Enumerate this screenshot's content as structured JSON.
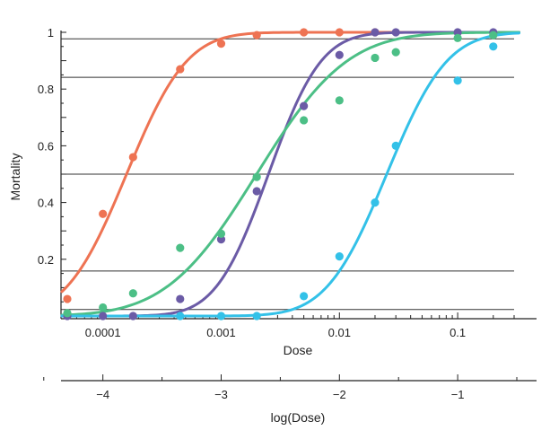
{
  "chart_data": {
    "type": "scatter",
    "xlabel": "Dose",
    "ylabel": "Mortality",
    "x_scale": "log",
    "xlim": [
      5e-05,
      0.3
    ],
    "ylim": [
      0,
      1
    ],
    "x_tick_labels": [
      "0.0001",
      "0.001",
      "0.01",
      "0.1"
    ],
    "x_ticks": [
      0.0001,
      0.001,
      0.01,
      0.1
    ],
    "y_tick_labels": [
      "0.2",
      "0.4",
      "0.6",
      "0.8",
      "1"
    ],
    "y_ticks": [
      0.2,
      0.4,
      0.6,
      0.8,
      1
    ],
    "reference_lines_y": [
      0.0228,
      0.1587,
      0.5,
      0.8413,
      0.9772
    ],
    "secondary_axis": {
      "label": "log(Dose)",
      "tick_labels": [
        "−4",
        "−3",
        "−2",
        "−1"
      ],
      "ticks": [
        -4,
        -3,
        -2,
        -1
      ],
      "minor_ticks": [
        -4.5,
        -3.5,
        -2.5,
        -1.5,
        -0.5
      ]
    },
    "grid": false,
    "series": [
      {
        "color": "#ee7353",
        "curve_log_center": -3.8,
        "curve_log_sigma": 0.4,
        "points": [
          {
            "x": 5e-05,
            "y": 0.06
          },
          {
            "x": 0.0001,
            "y": 0.36
          },
          {
            "x": 0.00018,
            "y": 0.56
          },
          {
            "x": 0.00045,
            "y": 0.87
          },
          {
            "x": 0.001,
            "y": 0.96
          },
          {
            "x": 0.002,
            "y": 0.99
          },
          {
            "x": 0.005,
            "y": 1.0
          },
          {
            "x": 0.01,
            "y": 1.0
          },
          {
            "x": 0.02,
            "y": 1.0
          }
        ]
      },
      {
        "color": "#6b5ba6",
        "curve_log_center": -2.6,
        "curve_log_sigma": 0.35,
        "points": [
          {
            "x": 5e-05,
            "y": 0.0
          },
          {
            "x": 0.0001,
            "y": 0.0
          },
          {
            "x": 0.00018,
            "y": 0.0
          },
          {
            "x": 0.00045,
            "y": 0.06
          },
          {
            "x": 0.001,
            "y": 0.27
          },
          {
            "x": 0.002,
            "y": 0.44
          },
          {
            "x": 0.005,
            "y": 0.74
          },
          {
            "x": 0.01,
            "y": 0.92
          },
          {
            "x": 0.02,
            "y": 1.0
          },
          {
            "x": 0.03,
            "y": 1.0
          },
          {
            "x": 0.1,
            "y": 1.0
          },
          {
            "x": 0.2,
            "y": 1.0
          }
        ]
      },
      {
        "color": "#4cbf86",
        "curve_log_center": -2.7,
        "curve_log_sigma": 0.6,
        "points": [
          {
            "x": 5e-05,
            "y": 0.01
          },
          {
            "x": 0.0001,
            "y": 0.03
          },
          {
            "x": 0.00018,
            "y": 0.08
          },
          {
            "x": 0.00045,
            "y": 0.24
          },
          {
            "x": 0.001,
            "y": 0.29
          },
          {
            "x": 0.002,
            "y": 0.49
          },
          {
            "x": 0.005,
            "y": 0.69
          },
          {
            "x": 0.01,
            "y": 0.76
          },
          {
            "x": 0.02,
            "y": 0.91
          },
          {
            "x": 0.03,
            "y": 0.93
          },
          {
            "x": 0.1,
            "y": 0.98
          },
          {
            "x": 0.2,
            "y": 0.99
          }
        ]
      },
      {
        "color": "#33c1e8",
        "curve_log_center": -1.6,
        "curve_log_sigma": 0.4,
        "points": [
          {
            "x": 0.00045,
            "y": 0.0
          },
          {
            "x": 0.001,
            "y": 0.0
          },
          {
            "x": 0.002,
            "y": 0.0
          },
          {
            "x": 0.005,
            "y": 0.07
          },
          {
            "x": 0.01,
            "y": 0.21
          },
          {
            "x": 0.02,
            "y": 0.4
          },
          {
            "x": 0.03,
            "y": 0.6
          },
          {
            "x": 0.1,
            "y": 0.83
          },
          {
            "x": 0.2,
            "y": 0.95
          }
        ]
      }
    ]
  }
}
